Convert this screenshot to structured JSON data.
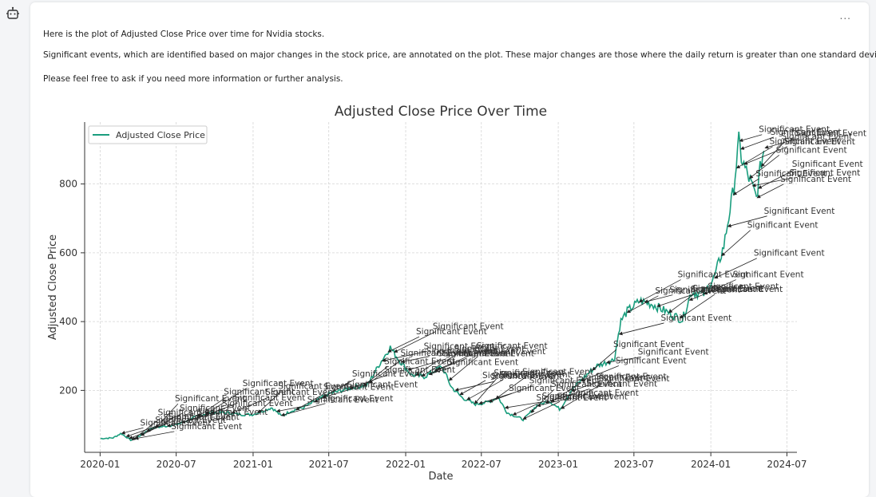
{
  "message": {
    "line1": "Here is the plot of Adjusted Close Price over time for Nvidia stocks.",
    "line2": "Significant events, which are identified based on major changes in the stock price, are annotated on the plot. These major changes are those where the daily return is greater than one standard deviation.",
    "line3": "Please feel free to ask if you need more information or further analysis."
  },
  "icons": {
    "assistant": "bot-icon",
    "menu": "more-icon"
  },
  "menu_label": "...",
  "chart_data": {
    "type": "line",
    "title": "Adjusted Close Price Over Time",
    "xlabel": "Date",
    "ylabel": "Adjusted Close Price",
    "xticks": [
      "2020-01",
      "2020-07",
      "2021-01",
      "2021-07",
      "2022-01",
      "2022-07",
      "2023-01",
      "2023-07",
      "2024-01",
      "2024-07"
    ],
    "yticks": [
      200,
      400,
      600,
      800
    ],
    "xlim": [
      "2019-11-25",
      "2024-07-25"
    ],
    "ylim": [
      20,
      980
    ],
    "grid": true,
    "legend": "top-left",
    "series": [
      {
        "name": "Adjusted Close Price",
        "color": "#1a9e7e",
        "points": [
          [
            "2020-01-02",
            60
          ],
          [
            "2020-02-01",
            62
          ],
          [
            "2020-02-20",
            75
          ],
          [
            "2020-03-15",
            55
          ],
          [
            "2020-04-01",
            65
          ],
          [
            "2020-05-01",
            90
          ],
          [
            "2020-06-01",
            95
          ],
          [
            "2020-07-01",
            100
          ],
          [
            "2020-08-01",
            115
          ],
          [
            "2020-09-01",
            130
          ],
          [
            "2020-10-01",
            135
          ],
          [
            "2020-11-01",
            135
          ],
          [
            "2020-12-01",
            130
          ],
          [
            "2021-01-01",
            130
          ],
          [
            "2021-02-15",
            150
          ],
          [
            "2021-03-10",
            125
          ],
          [
            "2021-04-01",
            140
          ],
          [
            "2021-05-01",
            150
          ],
          [
            "2021-06-01",
            170
          ],
          [
            "2021-07-01",
            190
          ],
          [
            "2021-08-01",
            200
          ],
          [
            "2021-09-01",
            210
          ],
          [
            "2021-10-01",
            215
          ],
          [
            "2021-11-01",
            280
          ],
          [
            "2021-11-25",
            325
          ],
          [
            "2021-12-15",
            290
          ],
          [
            "2022-01-15",
            245
          ],
          [
            "2022-02-15",
            240
          ],
          [
            "2022-03-29",
            270
          ],
          [
            "2022-04-20",
            210
          ],
          [
            "2022-05-15",
            180
          ],
          [
            "2022-06-15",
            160
          ],
          [
            "2022-07-15",
            165
          ],
          [
            "2022-08-10",
            180
          ],
          [
            "2022-09-01",
            135
          ],
          [
            "2022-10-10",
            115
          ],
          [
            "2022-11-10",
            155
          ],
          [
            "2022-12-10",
            170
          ],
          [
            "2023-01-05",
            145
          ],
          [
            "2023-02-01",
            200
          ],
          [
            "2023-03-01",
            235
          ],
          [
            "2023-04-01",
            270
          ],
          [
            "2023-05-15",
            290
          ],
          [
            "2023-05-30",
            400
          ],
          [
            "2023-06-15",
            430
          ],
          [
            "2023-07-15",
            460
          ],
          [
            "2023-08-15",
            450
          ],
          [
            "2023-09-15",
            430
          ],
          [
            "2023-10-25",
            405
          ],
          [
            "2023-11-15",
            485
          ],
          [
            "2023-12-15",
            480
          ],
          [
            "2024-01-10",
            530
          ],
          [
            "2024-02-01",
            620
          ],
          [
            "2024-02-25",
            790
          ],
          [
            "2024-03-08",
            925
          ],
          [
            "2024-03-15",
            870
          ],
          [
            "2024-04-19",
            760
          ],
          [
            "2024-04-30",
            860
          ],
          [
            "2024-05-08",
            905
          ]
        ]
      }
    ],
    "annotations": {
      "label": "Significant Event",
      "dates": [
        "2020-02-20",
        "2020-03-02",
        "2020-03-09",
        "2020-03-16",
        "2020-03-23",
        "2020-04-06",
        "2020-04-20",
        "2020-05-11",
        "2020-06-08",
        "2020-07-13",
        "2020-08-19",
        "2020-09-08",
        "2020-09-21",
        "2020-11-09",
        "2021-01-11",
        "2021-02-25",
        "2021-03-08",
        "2021-04-12",
        "2021-05-26",
        "2021-06-15",
        "2021-08-19",
        "2021-09-20",
        "2021-10-04",
        "2021-11-04",
        "2021-11-18",
        "2021-12-03",
        "2021-12-20",
        "2022-01-05",
        "2022-01-24",
        "2022-02-07",
        "2022-02-24",
        "2022-03-09",
        "2022-03-16",
        "2022-04-13",
        "2022-04-28",
        "2022-05-09",
        "2022-05-26",
        "2022-06-13",
        "2022-06-24",
        "2022-07-18",
        "2022-08-03",
        "2022-08-25",
        "2022-09-13",
        "2022-10-07",
        "2022-10-26",
        "2022-11-10",
        "2022-11-30",
        "2022-12-13",
        "2023-01-06",
        "2023-01-31",
        "2023-02-23",
        "2023-03-22",
        "2023-04-25",
        "2023-05-25",
        "2023-06-13",
        "2023-07-12",
        "2023-07-25",
        "2023-08-24",
        "2023-09-21",
        "2023-10-17",
        "2023-11-09",
        "2023-12-14",
        "2024-01-08",
        "2024-01-25",
        "2024-02-09",
        "2024-02-22",
        "2024-03-01",
        "2024-03-08",
        "2024-03-11",
        "2024-03-19",
        "2024-04-01",
        "2024-04-08",
        "2024-04-19",
        "2024-04-22",
        "2024-04-29",
        "2024-05-08"
      ]
    }
  }
}
